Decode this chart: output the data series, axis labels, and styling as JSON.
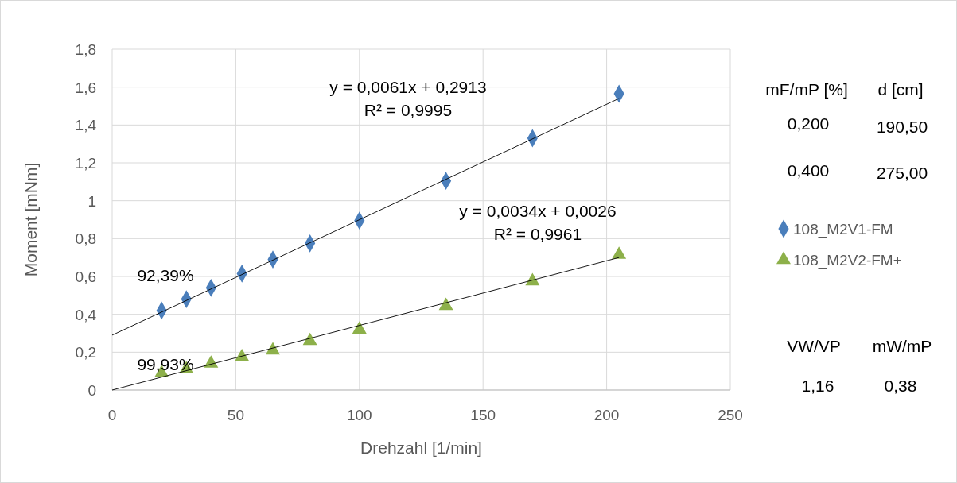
{
  "chart_data": {
    "type": "scatter",
    "xlabel": "Drehzahl [1/min]",
    "ylabel": "Moment [mNm]",
    "xlim": [
      0,
      250
    ],
    "xticks": [
      0,
      50,
      100,
      150,
      200,
      250
    ],
    "ylim": [
      0,
      1.8
    ],
    "yticks": [
      0,
      {
        "value": 0.2,
        "label": "0,2"
      },
      {
        "value": 0.4,
        "label": "0,4"
      },
      {
        "value": 0.6,
        "label": "0,6"
      },
      {
        "value": 0.8,
        "label": "0,8"
      },
      1,
      {
        "value": 1.2,
        "label": "1,2"
      },
      {
        "value": 1.4,
        "label": "1,4"
      },
      {
        "value": 1.6,
        "label": "1,6"
      },
      {
        "value": 1.8,
        "label": "1,8"
      }
    ],
    "grid": true,
    "legend": "right",
    "series": [
      {
        "name": "108_M2V1-FM",
        "color": "#4a7ebb",
        "marker": "diamond",
        "x": [
          20,
          30,
          40,
          52.5,
          65,
          80,
          100,
          135,
          170,
          205
        ],
        "values": [
          0.42,
          0.48,
          0.54,
          0.615,
          0.69,
          0.775,
          0.895,
          1.105,
          1.33,
          1.565
        ]
      },
      {
        "name": "108_M2V2-FM+",
        "color": "#8db04a",
        "marker": "triangle",
        "x": [
          20,
          30,
          40,
          52.5,
          65,
          80,
          100,
          135,
          170,
          205
        ],
        "values": [
          0.09,
          0.11,
          0.14,
          0.175,
          0.21,
          0.26,
          0.32,
          0.445,
          0.575,
          0.715
        ]
      },
      {
        "type": "line",
        "color": "#000000",
        "marker": "none",
        "x": [
          0,
          205
        ],
        "values": [
          0.29,
          1.54
        ]
      },
      {
        "type": "line",
        "color": "#000000",
        "marker": "none",
        "x": [
          0,
          205
        ],
        "values": [
          0,
          0.7
        ]
      }
    ],
    "annotations": [
      "y = 0,0061x + 0,2913",
      "R² = 0,9995",
      "y = 0,0034x + 0,0026",
      "R² = 0,9961",
      "92,39%",
      "99,93%",
      "mF/mP [%]",
      "d [cm]",
      "0,200",
      "190,50",
      "0,400",
      "275,00",
      "VW/VP",
      "mW/mP",
      "1,16",
      "0,38"
    ]
  }
}
